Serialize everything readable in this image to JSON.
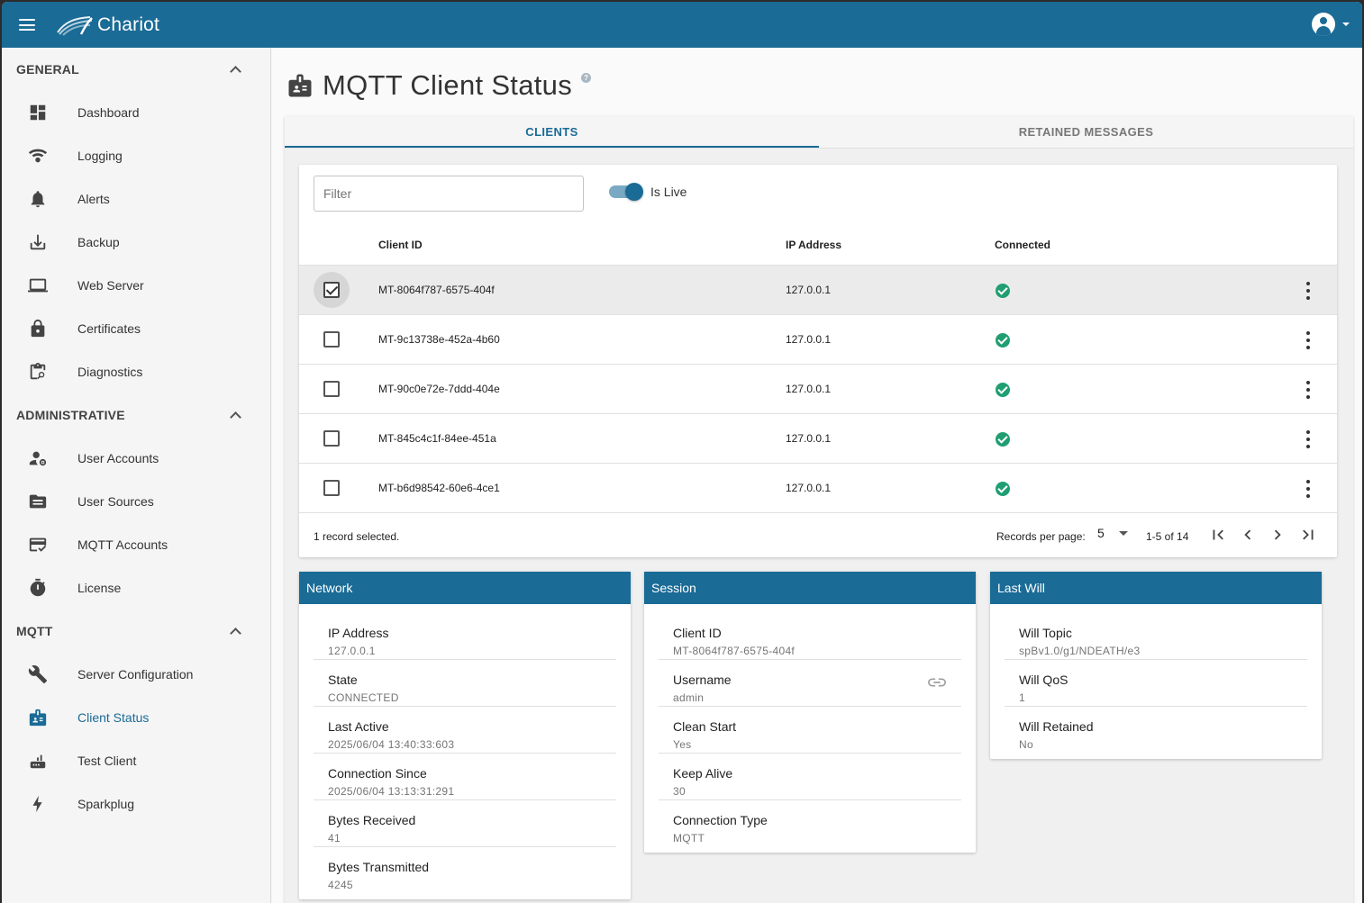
{
  "app": {
    "name": "Chariot"
  },
  "sidebar": {
    "sections": [
      {
        "title": "GENERAL",
        "items": [
          {
            "label": "Dashboard",
            "icon": "dashboard-icon"
          },
          {
            "label": "Logging",
            "icon": "logging-icon"
          },
          {
            "label": "Alerts",
            "icon": "bell-icon"
          },
          {
            "label": "Backup",
            "icon": "download-icon"
          },
          {
            "label": "Web Server",
            "icon": "laptop-icon"
          },
          {
            "label": "Certificates",
            "icon": "lock-icon"
          },
          {
            "label": "Diagnostics",
            "icon": "clipboard-search-icon"
          }
        ]
      },
      {
        "title": "ADMINISTRATIVE",
        "items": [
          {
            "label": "User Accounts",
            "icon": "user-gear-icon"
          },
          {
            "label": "User Sources",
            "icon": "folder-icon"
          },
          {
            "label": "MQTT Accounts",
            "icon": "card-check-icon"
          },
          {
            "label": "License",
            "icon": "stopwatch-icon"
          }
        ]
      },
      {
        "title": "MQTT",
        "items": [
          {
            "label": "Server Configuration",
            "icon": "wrench-icon"
          },
          {
            "label": "Client Status",
            "icon": "badge-icon",
            "active": true
          },
          {
            "label": "Test Client",
            "icon": "router-icon"
          },
          {
            "label": "Sparkplug",
            "icon": "bolt-icon"
          }
        ]
      }
    ]
  },
  "page": {
    "title": "MQTT Client Status"
  },
  "tabs": [
    {
      "label": "CLIENTS",
      "active": true
    },
    {
      "label": "RETAINED MESSAGES"
    }
  ],
  "clients": {
    "filter_placeholder": "Filter",
    "live_label": "Is Live",
    "columns": {
      "client_id": "Client ID",
      "ip": "IP Address",
      "connected": "Connected"
    },
    "rows": [
      {
        "client_id": "MT-8064f787-6575-404f",
        "ip": "127.0.0.1",
        "connected": true,
        "selected": true
      },
      {
        "client_id": "MT-9c13738e-452a-4b60",
        "ip": "127.0.0.1",
        "connected": true,
        "selected": false
      },
      {
        "client_id": "MT-90c0e72e-7ddd-404e",
        "ip": "127.0.0.1",
        "connected": true,
        "selected": false
      },
      {
        "client_id": "MT-845c4c1f-84ee-451a",
        "ip": "127.0.0.1",
        "connected": true,
        "selected": false
      },
      {
        "client_id": "MT-b6d98542-60e6-4ce1",
        "ip": "127.0.0.1",
        "connected": true,
        "selected": false
      }
    ],
    "footer": {
      "selected_text": "1 record selected.",
      "records_per_page_label": "Records per page:",
      "records_per_page": "5",
      "range": "1-5 of 14"
    }
  },
  "network": {
    "title": "Network",
    "fields": [
      {
        "key": "IP Address",
        "value": "127.0.0.1"
      },
      {
        "key": "State",
        "value": "CONNECTED"
      },
      {
        "key": "Last Active",
        "value": "2025/06/04 13:40:33:603"
      },
      {
        "key": "Connection Since",
        "value": "2025/06/04 13:13:31:291"
      },
      {
        "key": "Bytes Received",
        "value": "41"
      },
      {
        "key": "Bytes Transmitted",
        "value": "4245"
      }
    ]
  },
  "session": {
    "title": "Session",
    "fields": [
      {
        "key": "Client ID",
        "value": "MT-8064f787-6575-404f"
      },
      {
        "key": "Username",
        "value": "admin"
      },
      {
        "key": "Clean Start",
        "value": "Yes"
      },
      {
        "key": "Keep Alive",
        "value": "30"
      },
      {
        "key": "Connection Type",
        "value": "MQTT"
      }
    ]
  },
  "last_will": {
    "title": "Last Will",
    "fields": [
      {
        "key": "Will Topic",
        "value": "spBv1.0/g1/NDEATH/e3"
      },
      {
        "key": "Will QoS",
        "value": "1"
      },
      {
        "key": "Will Retained",
        "value": "No"
      }
    ]
  },
  "colors": {
    "primary": "#1a6b96",
    "connected": "#1f9e72"
  }
}
